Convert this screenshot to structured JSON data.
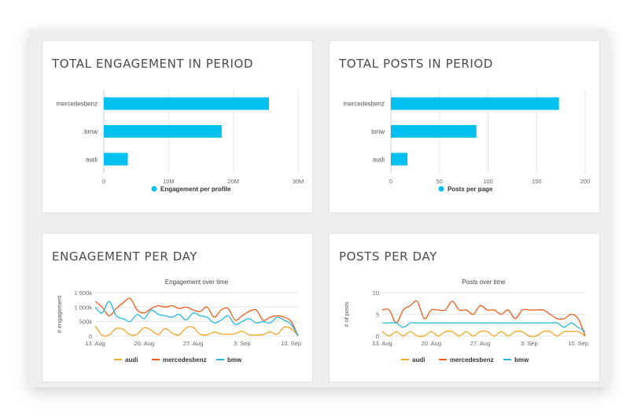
{
  "panels": {
    "p1": {
      "title": "TOTAL ENGAGEMENT IN PERIOD"
    },
    "p2": {
      "title": "TOTAL POSTS IN PERIOD"
    },
    "p3": {
      "title": "ENGAGEMENT PER DAY"
    },
    "p4": {
      "title": "POSTS PER DAY"
    }
  },
  "colors": {
    "bar": "#00c0ef",
    "audi": "#f5a623",
    "mercedesbenz": "#f35b19",
    "bmw": "#24b6e8"
  },
  "chart_data": [
    {
      "type": "bar",
      "orientation": "horizontal",
      "categories": [
        "mercedesbenz",
        "bmw",
        "audi"
      ],
      "series": [
        {
          "name": "Engagement per profile",
          "values": [
            25500000,
            18200000,
            3700000
          ]
        }
      ],
      "xlim": [
        0,
        30000000
      ],
      "xticks": [
        "0",
        "10M",
        "20M",
        "30M"
      ],
      "legend": "bottom"
    },
    {
      "type": "bar",
      "orientation": "horizontal",
      "categories": [
        "mercedesbenz",
        "bmw",
        "audi"
      ],
      "series": [
        {
          "name": "Posts per page",
          "values": [
            173,
            88,
            17
          ]
        }
      ],
      "xlim": [
        0,
        200
      ],
      "xticks": [
        "0",
        "50",
        "100",
        "150",
        "200"
      ],
      "legend": "bottom"
    },
    {
      "type": "line",
      "title": "Engagement over time",
      "ylabel": "# engagement",
      "ylim": [
        0,
        1500000
      ],
      "yticks": [
        "0",
        "500k",
        "1 000k",
        "1 500k"
      ],
      "xticks": [
        "13. Aug",
        "20. Aug",
        "27. Aug",
        "3. Sep",
        "10. Sep"
      ],
      "x": [
        "Aug 13",
        "Aug 14",
        "Aug 15",
        "Aug 16",
        "Aug 17",
        "Aug 18",
        "Aug 19",
        "Aug 20",
        "Aug 21",
        "Aug 22",
        "Aug 23",
        "Aug 24",
        "Aug 25",
        "Aug 26",
        "Aug 27",
        "Aug 28",
        "Aug 29",
        "Aug 30",
        "Aug 31",
        "Sep 1",
        "Sep 2",
        "Sep 3",
        "Sep 4",
        "Sep 5",
        "Sep 6",
        "Sep 7",
        "Sep 8",
        "Sep 9",
        "Sep 10",
        "Sep 11"
      ],
      "series": [
        {
          "name": "audi",
          "values": [
            350000,
            20000,
            40000,
            260000,
            230000,
            40000,
            60000,
            290000,
            200000,
            50000,
            260000,
            100000,
            40000,
            280000,
            300000,
            60000,
            40000,
            130000,
            70000,
            60000,
            80000,
            160000,
            40000,
            30000,
            50000,
            140000,
            60000,
            300000,
            250000,
            0
          ]
        },
        {
          "name": "mercedesbenz",
          "values": [
            1200000,
            1000000,
            700000,
            950000,
            1150000,
            1300000,
            900000,
            800000,
            950000,
            1050000,
            1000000,
            1050000,
            950000,
            1000000,
            900000,
            850000,
            1000000,
            650000,
            900000,
            950000,
            550000,
            700000,
            850000,
            900000,
            550000,
            650000,
            700000,
            650000,
            500000,
            0
          ]
        },
        {
          "name": "bmw",
          "values": [
            1000000,
            800000,
            1200000,
            700000,
            600000,
            500000,
            750000,
            600000,
            900000,
            750000,
            700000,
            650000,
            750000,
            550000,
            800000,
            700000,
            650000,
            450000,
            550000,
            700000,
            400000,
            500000,
            600000,
            450000,
            500000,
            450000,
            650000,
            550000,
            400000,
            0
          ]
        }
      ],
      "legend": "bottom"
    },
    {
      "type": "line",
      "title": "Posts over time",
      "ylabel": "# of posts",
      "ylim": [
        0,
        10
      ],
      "yticks": [
        "0",
        "5",
        "10"
      ],
      "xticks": [
        "13. Aug",
        "20. Aug",
        "27. Aug",
        "3. Sep",
        "10. Sep"
      ],
      "x": [
        "Aug 13",
        "Aug 14",
        "Aug 15",
        "Aug 16",
        "Aug 17",
        "Aug 18",
        "Aug 19",
        "Aug 20",
        "Aug 21",
        "Aug 22",
        "Aug 23",
        "Aug 24",
        "Aug 25",
        "Aug 26",
        "Aug 27",
        "Aug 28",
        "Aug 29",
        "Aug 30",
        "Aug 31",
        "Sep 1",
        "Sep 2",
        "Sep 3",
        "Sep 4",
        "Sep 5",
        "Sep 6",
        "Sep 7",
        "Sep 8",
        "Sep 9",
        "Sep 10",
        "Sep 11"
      ],
      "series": [
        {
          "name": "audi",
          "values": [
            1,
            0,
            1,
            0,
            1,
            0,
            0,
            1,
            0,
            1,
            1,
            0,
            1,
            0,
            1,
            1,
            0,
            1,
            0,
            1,
            1,
            0,
            0,
            1,
            1,
            0,
            1,
            1,
            1,
            0
          ]
        },
        {
          "name": "mercedesbenz",
          "values": [
            6,
            6,
            3,
            6,
            7,
            8,
            4,
            6,
            6,
            6,
            8,
            6,
            6,
            5,
            7,
            6,
            6,
            5,
            6,
            4,
            6,
            6,
            6,
            6,
            5,
            4,
            4,
            5,
            4,
            0
          ]
        },
        {
          "name": "bmw",
          "values": [
            3,
            3,
            3,
            2,
            3,
            3,
            3,
            3,
            3,
            3,
            3,
            3,
            3,
            3,
            3,
            3,
            3,
            3,
            3,
            3,
            3,
            3,
            3,
            3,
            3,
            3,
            2,
            3,
            2,
            1
          ]
        }
      ],
      "legend": "bottom"
    }
  ]
}
